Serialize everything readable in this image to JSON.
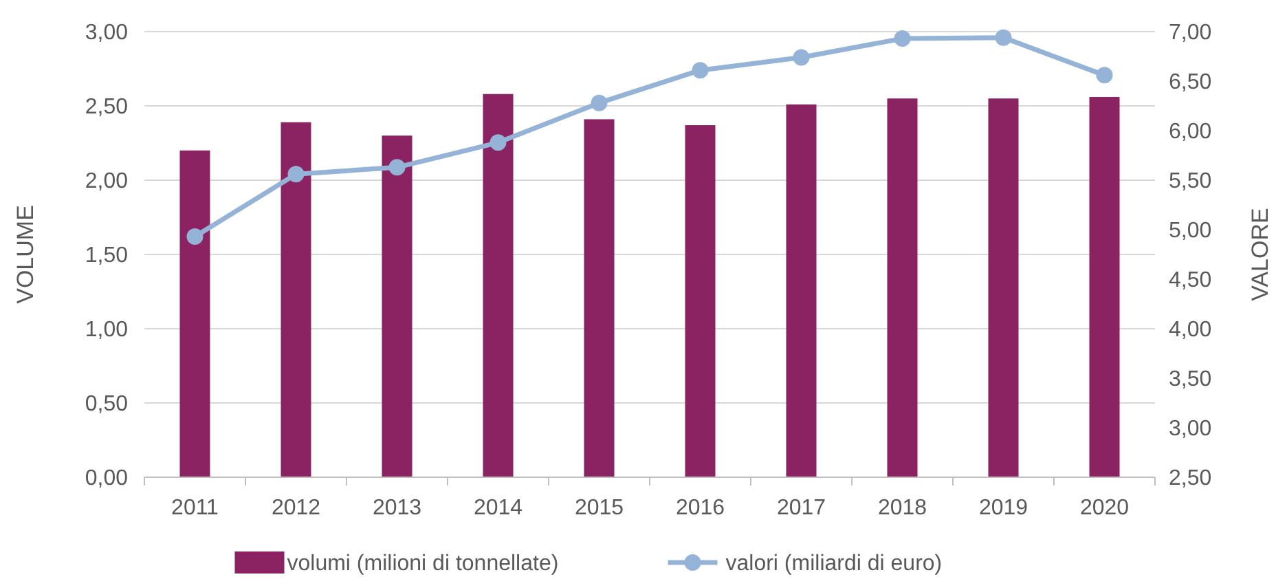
{
  "chart_data": {
    "type": "bar",
    "categories": [
      "2011",
      "2012",
      "2013",
      "2014",
      "2015",
      "2016",
      "2017",
      "2018",
      "2019",
      "2020"
    ],
    "series": [
      {
        "name": "volumi (milioni di tonnellate)",
        "color": "#8b2262",
        "values": [
          2.2,
          2.39,
          2.3,
          2.58,
          2.41,
          2.37,
          2.51,
          2.55,
          2.55,
          2.56
        ]
      },
      {
        "name": "valori (miliardi di euro)",
        "type": "line",
        "axis": "y2",
        "color": "#95b3d7",
        "values": [
          4.93,
          5.56,
          5.63,
          5.88,
          6.28,
          6.61,
          6.74,
          6.93,
          6.94,
          6.56
        ]
      }
    ],
    "ylabel": "VOLUME",
    "y2label": "VALORE",
    "ylim": [
      0,
      3
    ],
    "yticks": [
      {
        "value": 0,
        "label": "0,00"
      },
      {
        "value": 0.5,
        "label": "0,50"
      },
      {
        "value": 1,
        "label": "1,00"
      },
      {
        "value": 1.5,
        "label": "1,50"
      },
      {
        "value": 2,
        "label": "2,00"
      },
      {
        "value": 2.5,
        "label": "2,50"
      },
      {
        "value": 3,
        "label": "3,00"
      }
    ],
    "y2lim": [
      2.5,
      7
    ],
    "y2ticks": [
      {
        "value": 2.5,
        "label": "2,50"
      },
      {
        "value": 3,
        "label": "3,00"
      },
      {
        "value": 3.5,
        "label": "3,50"
      },
      {
        "value": 4,
        "label": "4,00"
      },
      {
        "value": 4.5,
        "label": "4,50"
      },
      {
        "value": 5,
        "label": "5,00"
      },
      {
        "value": 5.5,
        "label": "5,50"
      },
      {
        "value": 6,
        "label": "6,00"
      },
      {
        "value": 6.5,
        "label": "6,50"
      },
      {
        "value": 7,
        "label": "7,00"
      }
    ],
    "grid": "y",
    "legend": "bottom",
    "marker": "circle",
    "line_style": "solid"
  }
}
